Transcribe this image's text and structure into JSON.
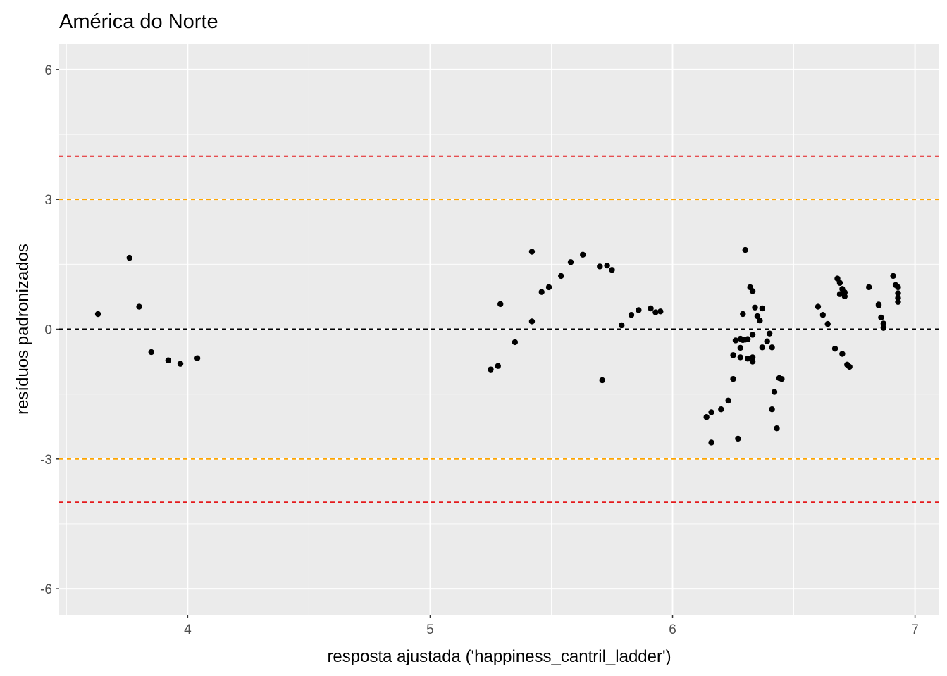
{
  "chart_data": {
    "type": "scatter",
    "title": "América do Norte",
    "xlabel": "resposta ajustada ('happiness_cantril_ladder')",
    "ylabel": "resíduos padronizados",
    "xlim": [
      3.47,
      7.1
    ],
    "ylim": [
      -6.6,
      6.6
    ],
    "x_ticks": [
      4,
      5,
      6,
      7
    ],
    "x_tick_labels": [
      "4",
      "5",
      "6",
      "7"
    ],
    "y_ticks": [
      -6,
      -3,
      0,
      3,
      6
    ],
    "y_tick_labels": [
      "-6",
      "-3",
      "0",
      "3",
      "6"
    ],
    "background": "#ebebeb",
    "grid": true,
    "reference_lines": [
      {
        "y": 4,
        "color": "#e41a1c",
        "style": "dashed"
      },
      {
        "y": 3,
        "color": "#ffa500",
        "style": "dashed"
      },
      {
        "y": 0,
        "color": "#000000",
        "style": "dashed"
      },
      {
        "y": -3,
        "color": "#ffa500",
        "style": "dashed"
      },
      {
        "y": -4,
        "color": "#e41a1c",
        "style": "dashed"
      }
    ],
    "point_color": "#000000",
    "points": [
      [
        3.63,
        0.35
      ],
      [
        3.76,
        1.65
      ],
      [
        3.8,
        0.52
      ],
      [
        3.85,
        -0.53
      ],
      [
        3.92,
        -0.72
      ],
      [
        3.97,
        -0.8
      ],
      [
        4.04,
        -0.67
      ],
      [
        5.25,
        -0.93
      ],
      [
        5.28,
        -0.85
      ],
      [
        5.29,
        0.58
      ],
      [
        5.35,
        -0.3
      ],
      [
        5.42,
        1.79
      ],
      [
        5.42,
        0.18
      ],
      [
        5.46,
        0.86
      ],
      [
        5.49,
        0.97
      ],
      [
        5.54,
        1.23
      ],
      [
        5.58,
        1.55
      ],
      [
        5.63,
        1.72
      ],
      [
        5.7,
        1.45
      ],
      [
        5.71,
        -1.18
      ],
      [
        5.73,
        1.47
      ],
      [
        5.75,
        1.37
      ],
      [
        5.79,
        0.09
      ],
      [
        5.83,
        0.33
      ],
      [
        5.86,
        0.44
      ],
      [
        5.91,
        0.48
      ],
      [
        5.93,
        0.39
      ],
      [
        5.95,
        0.41
      ],
      [
        6.14,
        -2.03
      ],
      [
        6.16,
        -2.62
      ],
      [
        6.16,
        -1.92
      ],
      [
        6.2,
        -1.85
      ],
      [
        6.23,
        -1.65
      ],
      [
        6.25,
        -1.15
      ],
      [
        6.25,
        -0.6
      ],
      [
        6.26,
        -0.26
      ],
      [
        6.27,
        -2.53
      ],
      [
        6.28,
        -0.43
      ],
      [
        6.28,
        -0.22
      ],
      [
        6.28,
        -0.65
      ],
      [
        6.29,
        0.35
      ],
      [
        6.29,
        -0.25
      ],
      [
        6.3,
        -0.24
      ],
      [
        6.3,
        1.83
      ],
      [
        6.31,
        -0.68
      ],
      [
        6.31,
        -0.23
      ],
      [
        6.32,
        0.97
      ],
      [
        6.33,
        0.88
      ],
      [
        6.33,
        -0.13
      ],
      [
        6.33,
        -0.65
      ],
      [
        6.33,
        -0.75
      ],
      [
        6.34,
        0.5
      ],
      [
        6.35,
        0.3
      ],
      [
        6.36,
        0.2
      ],
      [
        6.37,
        -0.42
      ],
      [
        6.37,
        0.48
      ],
      [
        6.39,
        -0.28
      ],
      [
        6.4,
        -0.1
      ],
      [
        6.41,
        -0.42
      ],
      [
        6.41,
        -1.85
      ],
      [
        6.42,
        -1.45
      ],
      [
        6.43,
        -2.29
      ],
      [
        6.44,
        -1.13
      ],
      [
        6.45,
        -1.15
      ],
      [
        6.6,
        0.52
      ],
      [
        6.62,
        0.33
      ],
      [
        6.64,
        0.12
      ],
      [
        6.67,
        -0.45
      ],
      [
        6.68,
        1.17
      ],
      [
        6.69,
        1.07
      ],
      [
        6.69,
        0.81
      ],
      [
        6.7,
        -0.57
      ],
      [
        6.7,
        0.93
      ],
      [
        6.71,
        0.85
      ],
      [
        6.71,
        0.76
      ],
      [
        6.72,
        -0.82
      ],
      [
        6.73,
        -0.87
      ],
      [
        6.81,
        0.97
      ],
      [
        6.85,
        0.57
      ],
      [
        6.85,
        0.55
      ],
      [
        6.86,
        0.27
      ],
      [
        6.87,
        0.13
      ],
      [
        6.87,
        0.03
      ],
      [
        6.91,
        1.23
      ],
      [
        6.92,
        1.02
      ],
      [
        6.93,
        0.97
      ],
      [
        6.93,
        0.83
      ],
      [
        6.93,
        0.72
      ],
      [
        6.93,
        0.63
      ]
    ]
  }
}
